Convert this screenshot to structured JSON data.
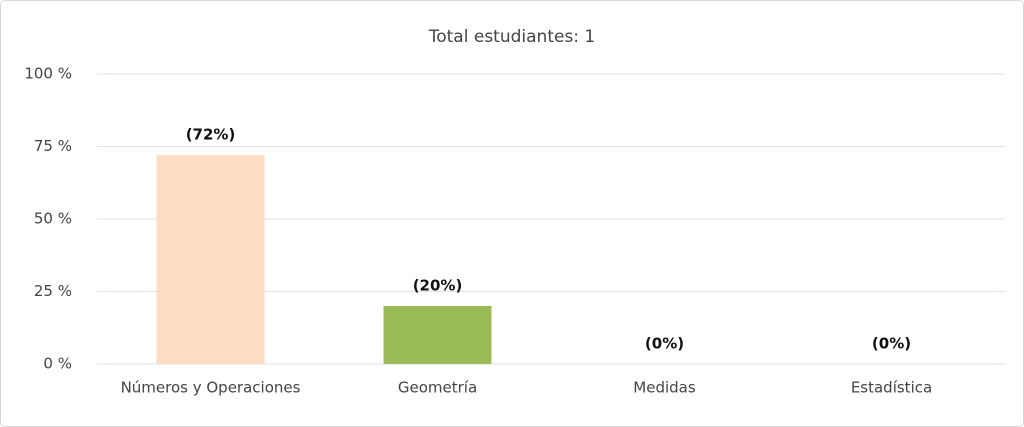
{
  "chart_data": {
    "type": "bar",
    "title": "Total estudiantes: 1",
    "categories": [
      "Números y Operaciones",
      "Geometría",
      "Medidas",
      "Estadística"
    ],
    "values": [
      72,
      20,
      0,
      0
    ],
    "value_labels": [
      "(72%)",
      "(20%)",
      "(0%)",
      "(0%)"
    ],
    "colors": [
      "#fddcc3",
      "#9bbb59",
      "#4f81bd",
      "#8064a2"
    ],
    "ylim": [
      0,
      100
    ],
    "yticks": [
      {
        "value": 0,
        "label": "0 %"
      },
      {
        "value": 25,
        "label": "25 %"
      },
      {
        "value": 50,
        "label": "50 %"
      },
      {
        "value": 75,
        "label": "75 %"
      },
      {
        "value": 100,
        "label": "100 %"
      }
    ],
    "grid": true
  }
}
